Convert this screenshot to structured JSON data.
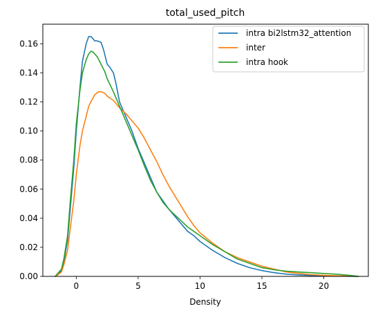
{
  "chart_data": {
    "type": "line",
    "title": "total_used_pitch",
    "xlabel": "Density",
    "ylabel": "",
    "xlim": [
      -2.7,
      23.6
    ],
    "ylim": [
      0,
      0.1735
    ],
    "xticks": [
      0,
      5,
      10,
      15,
      20
    ],
    "yticks": [
      0.0,
      0.02,
      0.04,
      0.06,
      0.08,
      0.1,
      0.12,
      0.14,
      0.16
    ],
    "grid": false,
    "legend_position": "top-right",
    "series": [
      {
        "name": "intra bi2lstm32_attention",
        "color": "#1f77b4",
        "x": [
          -1.7,
          -1.5,
          -1.2,
          -1.0,
          -0.7,
          -0.5,
          -0.2,
          0.0,
          0.3,
          0.5,
          0.8,
          1.0,
          1.2,
          1.5,
          1.7,
          2.0,
          2.2,
          2.5,
          2.7,
          3.0,
          3.2,
          3.5,
          4.0,
          4.5,
          5.0,
          5.5,
          6.0,
          6.5,
          7.0,
          7.5,
          8.0,
          8.5,
          9.0,
          9.5,
          10.0,
          11.0,
          12.0,
          13.0,
          14.0,
          15.0,
          16.0,
          17.0,
          18.0,
          19.0,
          20.0,
          21.0,
          22.0,
          22.8
        ],
        "y": [
          0.0,
          0.001,
          0.004,
          0.01,
          0.025,
          0.045,
          0.075,
          0.1,
          0.13,
          0.148,
          0.16,
          0.165,
          0.165,
          0.162,
          0.162,
          0.161,
          0.156,
          0.146,
          0.144,
          0.14,
          0.133,
          0.12,
          0.11,
          0.1,
          0.088,
          0.078,
          0.068,
          0.058,
          0.052,
          0.046,
          0.041,
          0.036,
          0.031,
          0.028,
          0.024,
          0.018,
          0.013,
          0.009,
          0.006,
          0.004,
          0.0025,
          0.0015,
          0.001,
          0.0006,
          0.0004,
          0.0002,
          0.0001,
          0.0
        ]
      },
      {
        "name": "inter",
        "color": "#ff7f0e",
        "x": [
          -1.7,
          -1.5,
          -1.2,
          -1.0,
          -0.7,
          -0.5,
          -0.2,
          0.0,
          0.3,
          0.5,
          0.8,
          1.0,
          1.3,
          1.5,
          1.8,
          2.0,
          2.3,
          2.5,
          3.0,
          3.5,
          4.0,
          4.5,
          5.0,
          5.5,
          6.0,
          6.5,
          7.0,
          7.5,
          8.0,
          8.5,
          9.0,
          9.5,
          10.0,
          11.0,
          12.0,
          13.0,
          14.0,
          15.0,
          16.0,
          17.0,
          18.0,
          19.0,
          20.0,
          21.0,
          22.0,
          22.8
        ],
        "y": [
          0.0,
          0.001,
          0.003,
          0.008,
          0.018,
          0.032,
          0.052,
          0.07,
          0.09,
          0.1,
          0.11,
          0.117,
          0.122,
          0.125,
          0.127,
          0.127,
          0.126,
          0.124,
          0.121,
          0.116,
          0.112,
          0.107,
          0.102,
          0.095,
          0.087,
          0.079,
          0.07,
          0.062,
          0.055,
          0.048,
          0.041,
          0.035,
          0.03,
          0.023,
          0.017,
          0.013,
          0.01,
          0.007,
          0.005,
          0.003,
          0.002,
          0.0012,
          0.0007,
          0.0004,
          0.0002,
          0.0
        ]
      },
      {
        "name": "intra hook",
        "color": "#2ca02c",
        "x": [
          -1.7,
          -1.5,
          -1.2,
          -1.0,
          -0.7,
          -0.5,
          -0.2,
          0.0,
          0.3,
          0.5,
          0.8,
          1.0,
          1.2,
          1.4,
          1.7,
          2.0,
          2.3,
          2.5,
          3.0,
          3.5,
          4.0,
          4.5,
          5.0,
          5.5,
          6.0,
          6.5,
          7.0,
          7.5,
          8.0,
          8.5,
          9.0,
          9.5,
          10.0,
          11.0,
          12.0,
          13.0,
          14.0,
          15.0,
          16.0,
          17.0,
          18.0,
          19.0,
          20.0,
          21.0,
          22.0,
          22.8
        ],
        "y": [
          0.0,
          0.002,
          0.005,
          0.012,
          0.028,
          0.05,
          0.08,
          0.105,
          0.128,
          0.14,
          0.149,
          0.153,
          0.155,
          0.154,
          0.151,
          0.146,
          0.141,
          0.136,
          0.127,
          0.117,
          0.107,
          0.097,
          0.087,
          0.076,
          0.066,
          0.058,
          0.051,
          0.046,
          0.042,
          0.038,
          0.034,
          0.031,
          0.028,
          0.022,
          0.017,
          0.012,
          0.009,
          0.006,
          0.0045,
          0.0035,
          0.003,
          0.0025,
          0.002,
          0.0015,
          0.0008,
          0.0
        ]
      }
    ]
  }
}
